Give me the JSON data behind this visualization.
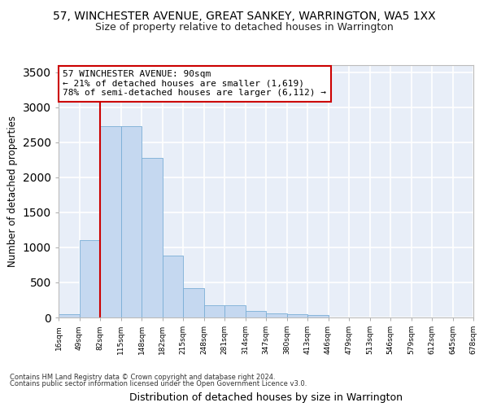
{
  "title1": "57, WINCHESTER AVENUE, GREAT SANKEY, WARRINGTON, WA5 1XX",
  "title2": "Size of property relative to detached houses in Warrington",
  "xlabel": "Distribution of detached houses by size in Warrington",
  "ylabel": "Number of detached properties",
  "footer1": "Contains HM Land Registry data © Crown copyright and database right 2024.",
  "footer2": "Contains public sector information licensed under the Open Government Licence v3.0.",
  "annotation_title": "57 WINCHESTER AVENUE: 90sqm",
  "annotation_line1": "← 21% of detached houses are smaller (1,619)",
  "annotation_line2": "78% of semi-detached houses are larger (6,112) →",
  "bar_values": [
    50,
    1100,
    2730,
    2730,
    2280,
    880,
    420,
    170,
    170,
    90,
    60,
    50,
    40,
    0,
    0,
    0,
    0,
    0,
    0,
    0
  ],
  "categories": [
    "16sqm",
    "49sqm",
    "82sqm",
    "115sqm",
    "148sqm",
    "182sqm",
    "215sqm",
    "248sqm",
    "281sqm",
    "314sqm",
    "347sqm",
    "380sqm",
    "413sqm",
    "446sqm",
    "479sqm",
    "513sqm",
    "546sqm",
    "579sqm",
    "612sqm",
    "645sqm",
    "678sqm"
  ],
  "bar_color": "#c5d8f0",
  "bar_edge_color": "#7aaed6",
  "highlight_color": "#cc0000",
  "ylim": [
    0,
    3600
  ],
  "yticks": [
    0,
    500,
    1000,
    1500,
    2000,
    2500,
    3000,
    3500
  ],
  "background_color": "#e8eef8",
  "grid_color": "#ffffff",
  "annotation_box_facecolor": "#ffffff",
  "annotation_box_edgecolor": "#cc0000",
  "title1_fontsize": 10,
  "title2_fontsize": 9,
  "xlabel_fontsize": 9,
  "ylabel_fontsize": 8.5,
  "footer_fontsize": 6,
  "annot_fontsize": 8
}
